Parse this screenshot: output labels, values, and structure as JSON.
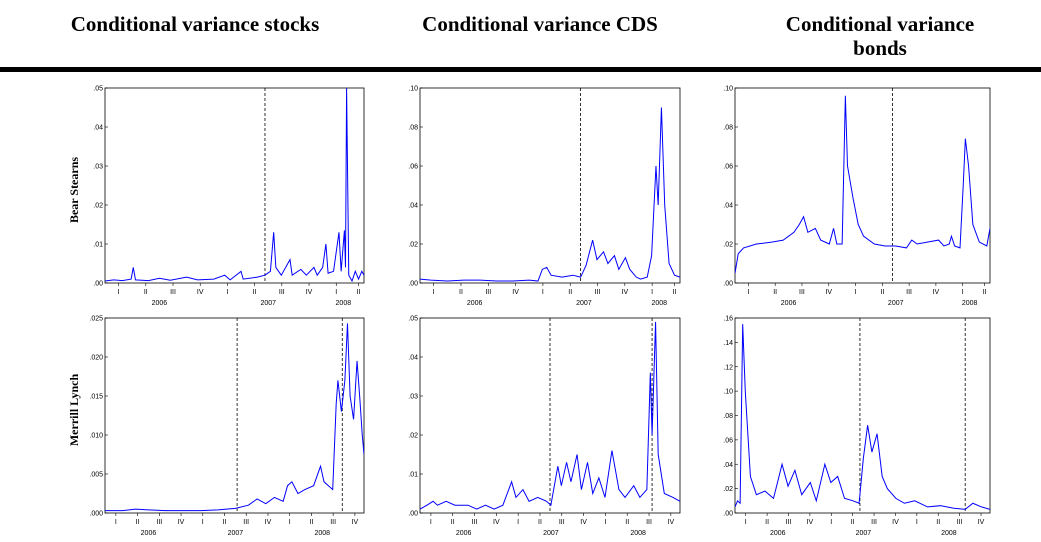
{
  "headers": [
    "Conditional variance stocks",
    "Conditional variance CDS",
    "Conditional variance bonds"
  ],
  "row_labels": [
    "Bear Stearns",
    "Merrill Lynch"
  ],
  "chart_data": [
    {
      "type": "line",
      "color": "#0000ff",
      "x": [
        2006.0,
        2006.08,
        2006.16,
        2006.24,
        2006.26,
        2006.28,
        2006.4,
        2006.5,
        2006.6,
        2006.75,
        2006.85,
        2007.0,
        2007.1,
        2007.15,
        2007.25,
        2007.27,
        2007.4,
        2007.47,
        2007.52,
        2007.55,
        2007.57,
        2007.62,
        2007.7,
        2007.72,
        2007.8,
        2007.85,
        2007.92,
        2007.95,
        2008.0,
        2008.03,
        2008.05,
        2008.1,
        2008.15,
        2008.17,
        2008.2,
        2008.21,
        2008.22,
        2008.24,
        2008.27,
        2008.3,
        2008.33,
        2008.36,
        2008.38
      ],
      "values": [
        0.0005,
        0.0008,
        0.0006,
        0.001,
        0.004,
        0.0008,
        0.0006,
        0.0012,
        0.0007,
        0.0015,
        0.0008,
        0.001,
        0.002,
        0.0008,
        0.003,
        0.001,
        0.0015,
        0.002,
        0.003,
        0.013,
        0.004,
        0.002,
        0.006,
        0.002,
        0.0035,
        0.002,
        0.004,
        0.002,
        0.004,
        0.01,
        0.0025,
        0.003,
        0.013,
        0.003,
        0.0135,
        0.004,
        0.05,
        0.002,
        0.0005,
        0.003,
        0.001,
        0.003,
        0.002
      ],
      "xlim": [
        2006.0,
        2008.38
      ],
      "ylim": [
        0,
        0.05
      ],
      "yticks": [
        {
          "value": 0,
          "label": ".00"
        },
        {
          "value": 0.01,
          "label": ".01"
        },
        {
          "value": 0.02,
          "label": ".02"
        },
        {
          "value": 0.03,
          "label": ".03"
        },
        {
          "value": 0.04,
          "label": ".04"
        },
        {
          "value": 0.05,
          "label": ".05"
        }
      ],
      "xticks": [
        {
          "value": 2006.125,
          "label": "I"
        },
        {
          "value": 2006.375,
          "label": "II"
        },
        {
          "value": 2006.625,
          "label": "III"
        },
        {
          "value": 2006.875,
          "label": "IV"
        },
        {
          "value": 2007.125,
          "label": "I"
        },
        {
          "value": 2007.375,
          "label": "II"
        },
        {
          "value": 2007.625,
          "label": "III"
        },
        {
          "value": 2007.875,
          "label": "IV"
        },
        {
          "value": 2008.125,
          "label": "I"
        },
        {
          "value": 2008.33,
          "label": "II"
        }
      ],
      "year_labels": [
        {
          "value": 2006.5,
          "label": "2006"
        },
        {
          "value": 2007.5,
          "label": "2007"
        },
        {
          "value": 2008.19,
          "label": "2008"
        }
      ],
      "events": [
        2007.47
      ]
    },
    {
      "type": "line",
      "color": "#0000ff",
      "x": [
        2006.0,
        2006.1,
        2006.25,
        2006.4,
        2006.55,
        2006.7,
        2006.85,
        2007.0,
        2007.08,
        2007.12,
        2007.16,
        2007.2,
        2007.3,
        2007.4,
        2007.47,
        2007.52,
        2007.58,
        2007.62,
        2007.68,
        2007.72,
        2007.78,
        2007.82,
        2007.88,
        2007.92,
        2007.98,
        2008.02,
        2008.08,
        2008.12,
        2008.16,
        2008.18,
        2008.21,
        2008.24,
        2008.28,
        2008.33,
        2008.38
      ],
      "values": [
        0.002,
        0.0015,
        0.001,
        0.0015,
        0.0015,
        0.001,
        0.001,
        0.0015,
        0.001,
        0.007,
        0.008,
        0.004,
        0.003,
        0.004,
        0.003,
        0.009,
        0.022,
        0.012,
        0.016,
        0.01,
        0.014,
        0.007,
        0.013,
        0.007,
        0.003,
        0.002,
        0.003,
        0.014,
        0.06,
        0.04,
        0.09,
        0.04,
        0.01,
        0.004,
        0.003
      ],
      "xlim": [
        2006.0,
        2008.38
      ],
      "ylim": [
        0,
        0.1
      ],
      "yticks": [
        {
          "value": 0,
          "label": ".00"
        },
        {
          "value": 0.02,
          "label": ".02"
        },
        {
          "value": 0.04,
          "label": ".04"
        },
        {
          "value": 0.06,
          "label": ".06"
        },
        {
          "value": 0.08,
          "label": ".08"
        },
        {
          "value": 0.1,
          "label": ".10"
        }
      ],
      "xticks": [
        {
          "value": 2006.125,
          "label": "I"
        },
        {
          "value": 2006.375,
          "label": "II"
        },
        {
          "value": 2006.625,
          "label": "III"
        },
        {
          "value": 2006.875,
          "label": "IV"
        },
        {
          "value": 2007.125,
          "label": "I"
        },
        {
          "value": 2007.375,
          "label": "II"
        },
        {
          "value": 2007.625,
          "label": "III"
        },
        {
          "value": 2007.875,
          "label": "IV"
        },
        {
          "value": 2008.125,
          "label": "I"
        },
        {
          "value": 2008.33,
          "label": "II"
        }
      ],
      "year_labels": [
        {
          "value": 2006.5,
          "label": "2006"
        },
        {
          "value": 2007.5,
          "label": "2007"
        },
        {
          "value": 2008.19,
          "label": "2008"
        }
      ],
      "events": [
        2007.47
      ]
    },
    {
      "type": "line",
      "color": "#0000ff",
      "x": [
        2006.0,
        2006.03,
        2006.08,
        2006.2,
        2006.35,
        2006.45,
        2006.55,
        2006.6,
        2006.64,
        2006.68,
        2006.75,
        2006.8,
        2006.88,
        2006.92,
        2006.95,
        2007.0,
        2007.03,
        2007.05,
        2007.1,
        2007.15,
        2007.2,
        2007.3,
        2007.4,
        2007.5,
        2007.6,
        2007.65,
        2007.7,
        2007.8,
        2007.9,
        2007.95,
        2008.0,
        2008.02,
        2008.05,
        2008.1,
        2008.13,
        2008.15,
        2008.18,
        2008.22,
        2008.28,
        2008.35,
        2008.38
      ],
      "values": [
        0.005,
        0.015,
        0.018,
        0.02,
        0.021,
        0.022,
        0.026,
        0.03,
        0.034,
        0.026,
        0.028,
        0.022,
        0.02,
        0.028,
        0.02,
        0.02,
        0.096,
        0.06,
        0.044,
        0.03,
        0.024,
        0.02,
        0.019,
        0.019,
        0.018,
        0.022,
        0.02,
        0.021,
        0.022,
        0.019,
        0.02,
        0.024,
        0.019,
        0.018,
        0.05,
        0.074,
        0.06,
        0.03,
        0.021,
        0.019,
        0.028
      ],
      "xlim": [
        2006.0,
        2008.38
      ],
      "ylim": [
        0,
        0.1
      ],
      "yticks": [
        {
          "value": 0,
          "label": ".00"
        },
        {
          "value": 0.02,
          "label": ".02"
        },
        {
          "value": 0.04,
          "label": ".04"
        },
        {
          "value": 0.06,
          "label": ".06"
        },
        {
          "value": 0.08,
          "label": ".08"
        },
        {
          "value": 0.1,
          "label": ".10"
        }
      ],
      "xticks": [
        {
          "value": 2006.125,
          "label": "I"
        },
        {
          "value": 2006.375,
          "label": "II"
        },
        {
          "value": 2006.625,
          "label": "III"
        },
        {
          "value": 2006.875,
          "label": "IV"
        },
        {
          "value": 2007.125,
          "label": "I"
        },
        {
          "value": 2007.375,
          "label": "II"
        },
        {
          "value": 2007.625,
          "label": "III"
        },
        {
          "value": 2007.875,
          "label": "IV"
        },
        {
          "value": 2008.125,
          "label": "I"
        },
        {
          "value": 2008.33,
          "label": "II"
        }
      ],
      "year_labels": [
        {
          "value": 2006.5,
          "label": "2006"
        },
        {
          "value": 2007.5,
          "label": "2007"
        },
        {
          "value": 2008.19,
          "label": "2008"
        }
      ],
      "events": [
        2007.47
      ]
    },
    {
      "type": "line",
      "color": "#0000ff",
      "x": [
        2006.0,
        2006.2,
        2006.35,
        2006.5,
        2006.7,
        2006.9,
        2007.1,
        2007.3,
        2007.5,
        2007.65,
        2007.75,
        2007.85,
        2007.95,
        2008.05,
        2008.1,
        2008.15,
        2008.22,
        2008.3,
        2008.4,
        2008.48,
        2008.52,
        2008.62,
        2008.66,
        2008.68,
        2008.72,
        2008.76,
        2008.79,
        2008.82,
        2008.86,
        2008.9,
        2008.93,
        2008.96,
        2008.98
      ],
      "values": [
        0.0003,
        0.0003,
        0.0005,
        0.0004,
        0.0003,
        0.0003,
        0.0003,
        0.0004,
        0.0006,
        0.001,
        0.0018,
        0.0012,
        0.002,
        0.0015,
        0.0035,
        0.004,
        0.0025,
        0.003,
        0.0035,
        0.006,
        0.004,
        0.003,
        0.014,
        0.017,
        0.013,
        0.017,
        0.0243,
        0.015,
        0.012,
        0.0195,
        0.015,
        0.01,
        0.0075
      ],
      "xlim": [
        2006.0,
        2008.98
      ],
      "ylim": [
        0,
        0.025
      ],
      "yticks": [
        {
          "value": 0,
          "label": ".000"
        },
        {
          "value": 0.005,
          "label": ".005"
        },
        {
          "value": 0.01,
          "label": ".010"
        },
        {
          "value": 0.015,
          "label": ".015"
        },
        {
          "value": 0.02,
          "label": ".020"
        },
        {
          "value": 0.025,
          "label": ".025"
        }
      ],
      "xticks": [
        {
          "value": 2006.125,
          "label": "I"
        },
        {
          "value": 2006.375,
          "label": "II"
        },
        {
          "value": 2006.625,
          "label": "III"
        },
        {
          "value": 2006.875,
          "label": "IV"
        },
        {
          "value": 2007.125,
          "label": "I"
        },
        {
          "value": 2007.375,
          "label": "II"
        },
        {
          "value": 2007.625,
          "label": "III"
        },
        {
          "value": 2007.875,
          "label": "IV"
        },
        {
          "value": 2008.125,
          "label": "I"
        },
        {
          "value": 2008.375,
          "label": "II"
        },
        {
          "value": 2008.625,
          "label": "III"
        },
        {
          "value": 2008.875,
          "label": "IV"
        }
      ],
      "year_labels": [
        {
          "value": 2006.5,
          "label": "2006"
        },
        {
          "value": 2007.5,
          "label": "2007"
        },
        {
          "value": 2008.5,
          "label": "2008"
        }
      ],
      "events": [
        2007.52,
        2008.73
      ]
    },
    {
      "type": "line",
      "color": "#0000ff",
      "x": [
        2006.0,
        2006.08,
        2006.15,
        2006.2,
        2006.3,
        2006.4,
        2006.55,
        2006.65,
        2006.75,
        2006.85,
        2006.95,
        2007.0,
        2007.05,
        2007.1,
        2007.18,
        2007.25,
        2007.35,
        2007.45,
        2007.5,
        2007.58,
        2007.62,
        2007.68,
        2007.73,
        2007.8,
        2007.85,
        2007.92,
        2007.98,
        2008.05,
        2008.12,
        2008.2,
        2008.28,
        2008.35,
        2008.45,
        2008.52,
        2008.6,
        2008.64,
        2008.66,
        2008.7,
        2008.73,
        2008.8,
        2008.9,
        2008.98
      ],
      "values": [
        0.001,
        0.002,
        0.003,
        0.002,
        0.003,
        0.002,
        0.002,
        0.001,
        0.002,
        0.001,
        0.002,
        0.005,
        0.008,
        0.004,
        0.006,
        0.003,
        0.004,
        0.003,
        0.002,
        0.012,
        0.007,
        0.013,
        0.008,
        0.015,
        0.006,
        0.013,
        0.005,
        0.009,
        0.004,
        0.016,
        0.006,
        0.004,
        0.007,
        0.004,
        0.006,
        0.036,
        0.02,
        0.049,
        0.015,
        0.005,
        0.004,
        0.003
      ],
      "xlim": [
        2006.0,
        2008.98
      ],
      "ylim": [
        0,
        0.05
      ],
      "yticks": [
        {
          "value": 0,
          "label": ".00"
        },
        {
          "value": 0.01,
          "label": ".01"
        },
        {
          "value": 0.02,
          "label": ".02"
        },
        {
          "value": 0.03,
          "label": ".03"
        },
        {
          "value": 0.04,
          "label": ".04"
        },
        {
          "value": 0.05,
          "label": ".05"
        }
      ],
      "xticks": [
        {
          "value": 2006.125,
          "label": "I"
        },
        {
          "value": 2006.375,
          "label": "II"
        },
        {
          "value": 2006.625,
          "label": "III"
        },
        {
          "value": 2006.875,
          "label": "IV"
        },
        {
          "value": 2007.125,
          "label": "I"
        },
        {
          "value": 2007.375,
          "label": "II"
        },
        {
          "value": 2007.625,
          "label": "III"
        },
        {
          "value": 2007.875,
          "label": "IV"
        },
        {
          "value": 2008.125,
          "label": "I"
        },
        {
          "value": 2008.375,
          "label": "II"
        },
        {
          "value": 2008.625,
          "label": "III"
        },
        {
          "value": 2008.875,
          "label": "IV"
        }
      ],
      "year_labels": [
        {
          "value": 2006.5,
          "label": "2006"
        },
        {
          "value": 2007.5,
          "label": "2007"
        },
        {
          "value": 2008.5,
          "label": "2008"
        }
      ],
      "events": [
        2007.49,
        2008.66
      ]
    },
    {
      "type": "line",
      "color": "#0000ff",
      "x": [
        2006.0,
        2006.03,
        2006.06,
        2006.09,
        2006.12,
        2006.18,
        2006.25,
        2006.35,
        2006.45,
        2006.55,
        2006.62,
        2006.7,
        2006.78,
        2006.88,
        2006.95,
        2007.05,
        2007.12,
        2007.2,
        2007.28,
        2007.38,
        2007.45,
        2007.5,
        2007.55,
        2007.6,
        2007.66,
        2007.72,
        2007.78,
        2007.88,
        2007.98,
        2008.1,
        2008.25,
        2008.4,
        2008.55,
        2008.69,
        2008.78,
        2008.88,
        2008.98
      ],
      "values": [
        0.005,
        0.01,
        0.008,
        0.155,
        0.1,
        0.03,
        0.015,
        0.018,
        0.012,
        0.04,
        0.022,
        0.035,
        0.015,
        0.025,
        0.01,
        0.04,
        0.025,
        0.03,
        0.012,
        0.01,
        0.008,
        0.045,
        0.072,
        0.05,
        0.065,
        0.03,
        0.02,
        0.012,
        0.008,
        0.01,
        0.005,
        0.006,
        0.004,
        0.003,
        0.008,
        0.005,
        0.003
      ],
      "xlim": [
        2006.0,
        2008.98
      ],
      "ylim": [
        0,
        0.16
      ],
      "yticks": [
        {
          "value": 0,
          "label": ".00"
        },
        {
          "value": 0.02,
          "label": ".02"
        },
        {
          "value": 0.04,
          "label": ".04"
        },
        {
          "value": 0.06,
          "label": ".06"
        },
        {
          "value": 0.08,
          "label": ".08"
        },
        {
          "value": 0.1,
          "label": ".10"
        },
        {
          "value": 0.12,
          "label": ".12"
        },
        {
          "value": 0.14,
          "label": ".14"
        },
        {
          "value": 0.16,
          "label": ".16"
        }
      ],
      "xticks": [
        {
          "value": 2006.125,
          "label": "I"
        },
        {
          "value": 2006.375,
          "label": "II"
        },
        {
          "value": 2006.625,
          "label": "III"
        },
        {
          "value": 2006.875,
          "label": "IV"
        },
        {
          "value": 2007.125,
          "label": "I"
        },
        {
          "value": 2007.375,
          "label": "II"
        },
        {
          "value": 2007.625,
          "label": "III"
        },
        {
          "value": 2007.875,
          "label": "IV"
        },
        {
          "value": 2008.125,
          "label": "I"
        },
        {
          "value": 2008.375,
          "label": "II"
        },
        {
          "value": 2008.625,
          "label": "III"
        },
        {
          "value": 2008.875,
          "label": "IV"
        }
      ],
      "year_labels": [
        {
          "value": 2006.5,
          "label": "2006"
        },
        {
          "value": 2007.5,
          "label": "2007"
        },
        {
          "value": 2008.5,
          "label": "2008"
        }
      ],
      "events": [
        2007.46,
        2008.69
      ]
    }
  ]
}
